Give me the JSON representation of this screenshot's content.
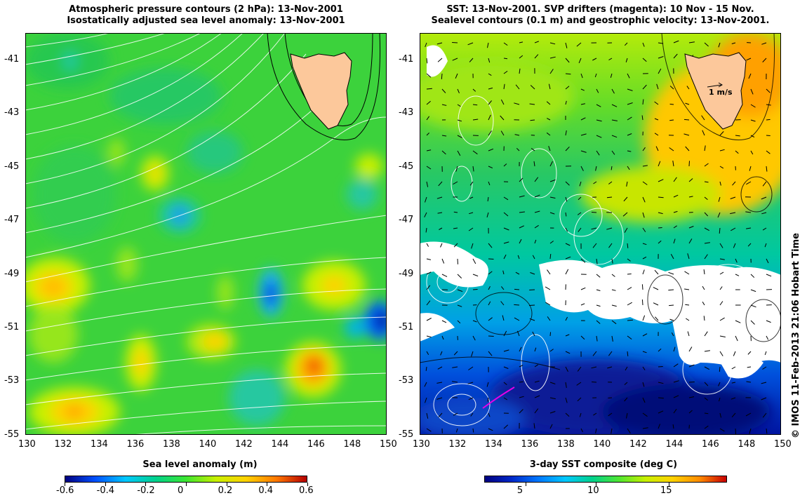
{
  "left_panel": {
    "title_line1": "Atmospheric pressure contours (2 hPa): 13-Nov-2001",
    "title_line2": "Isostatically adjusted sea level anomaly: 13-Nov-2001",
    "colorbar_title": "Sea level anomaly (m)",
    "colorbar_ticks": [
      "-0.6",
      "-0.4",
      "-0.2",
      "0",
      "0.2",
      "0.4",
      "0.6"
    ],
    "colorbar_colors": [
      "#00007f",
      "#0050ff",
      "#00c8ff",
      "#00d28c",
      "#3ce632",
      "#c8f000",
      "#ffd200",
      "#ff7800",
      "#b40000"
    ]
  },
  "right_panel": {
    "title_line1": "SST: 13-Nov-2001. SVP drifters (magenta): 10 Nov - 15 Nov.",
    "title_line2": "Sealevel contours (0.1 m) and geostrophic velocity: 13-Nov-2001.",
    "colorbar_title": "3-day SST composite (deg C)",
    "colorbar_ticks": [
      "5",
      "10",
      "15"
    ],
    "colorbar_colors": [
      "#00007f",
      "#0028c8",
      "#0078ff",
      "#00c8ff",
      "#00d28c",
      "#50e632",
      "#c8f000",
      "#ffd200",
      "#ff8c00",
      "#c80000"
    ],
    "velocity_scale_label": "1 m/s"
  },
  "axes": {
    "x_ticks": [
      "130",
      "132",
      "134",
      "136",
      "138",
      "140",
      "142",
      "144",
      "146",
      "148",
      "150"
    ],
    "y_ticks": [
      "-41",
      "-43",
      "-45",
      "-47",
      "-49",
      "-51",
      "-53",
      "-55"
    ]
  },
  "credit": "© IMOS 11-Feb-2013 21:06 Hobart Time",
  "colors": {
    "land": "#fcc89b",
    "ocean_green": "#3cd23c",
    "drifter": "#e600e6"
  }
}
